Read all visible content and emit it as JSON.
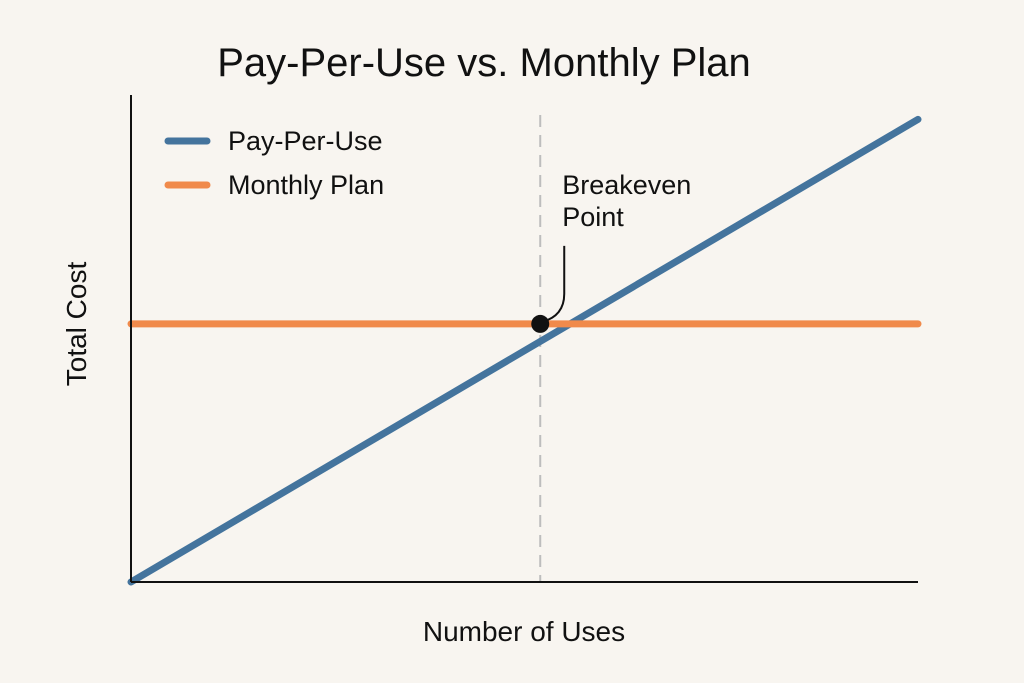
{
  "chart_data": {
    "type": "line",
    "title": "Pay-Per-Use vs. Monthly Plan",
    "xlabel": "Number of Uses",
    "ylabel": "Total Cost",
    "xlim": [
      0,
      100
    ],
    "ylim": [
      0,
      100
    ],
    "grid": false,
    "legend_position": "top-left",
    "series": [
      {
        "name": "Pay-Per-Use",
        "color": "#44749d",
        "x": [
          0,
          100
        ],
        "y": [
          0,
          95
        ]
      },
      {
        "name": "Monthly Plan",
        "color": "#f08a4b",
        "x": [
          0,
          100
        ],
        "y": [
          53,
          53
        ]
      }
    ],
    "annotations": [
      {
        "text_lines": [
          "Breakeven",
          "Point"
        ],
        "x": 52,
        "y": 53
      }
    ],
    "reference_line": {
      "x": 52,
      "style": "dashed",
      "color": "#bdbdbd"
    }
  }
}
